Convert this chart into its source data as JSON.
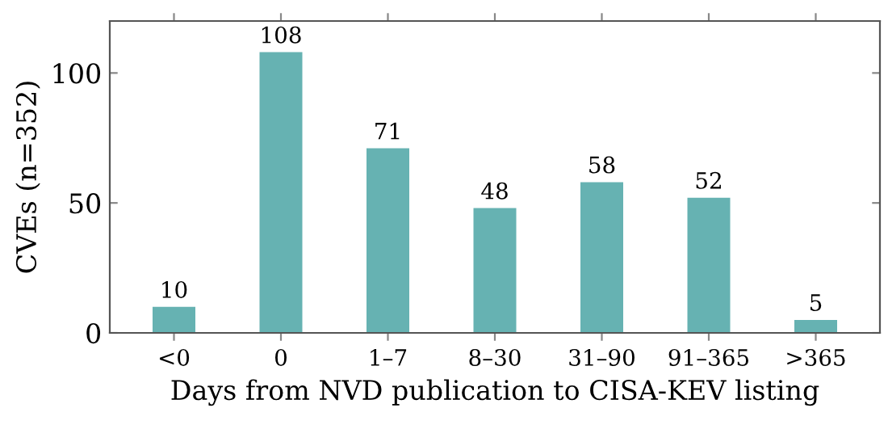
{
  "chart_data": {
    "type": "bar",
    "xlabel": "Days from NVD publication to CISA-KEV listing",
    "ylabel": "CVEs (n=352)",
    "categories": [
      "<0",
      "0",
      "1–7",
      "8–30",
      "31–90",
      "91–365",
      ">365"
    ],
    "values": [
      10,
      108,
      71,
      48,
      58,
      52,
      5
    ],
    "color": "#66b2b2",
    "ylim": [
      0,
      120
    ],
    "yticks": [
      0,
      50,
      100
    ],
    "data_labels": true,
    "grid": false,
    "legend": false
  }
}
